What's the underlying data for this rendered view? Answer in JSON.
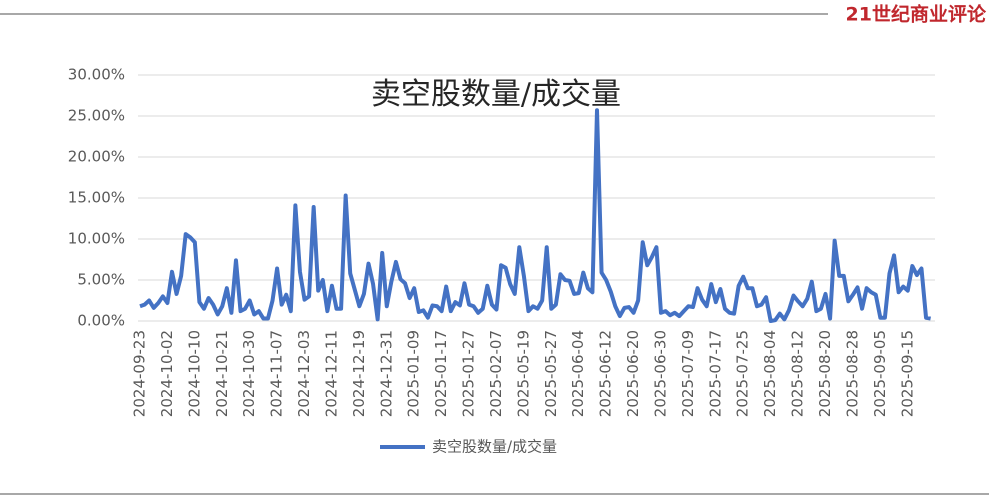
{
  "watermark": "21世纪商业评论",
  "chart_data": {
    "type": "line",
    "title": "卖空股数量/成交量",
    "categories": [
      "2024-09-23",
      null,
      null,
      null,
      null,
      null,
      "2024-10-02",
      null,
      null,
      null,
      null,
      null,
      "2024-10-10",
      null,
      null,
      null,
      null,
      null,
      "2024-10-21",
      null,
      null,
      null,
      null,
      null,
      "2024-10-30",
      null,
      null,
      null,
      null,
      null,
      "2024-11-07",
      null,
      null,
      null,
      null,
      null,
      "2024-12-03",
      null,
      null,
      null,
      null,
      null,
      "2024-12-11",
      null,
      null,
      null,
      null,
      null,
      "2024-12-19",
      null,
      null,
      null,
      null,
      null,
      "2024-12-31",
      null,
      null,
      null,
      null,
      null,
      "2025-01-09",
      null,
      null,
      null,
      null,
      null,
      "2025-01-17",
      null,
      null,
      null,
      null,
      null,
      "2025-01-27",
      null,
      null,
      null,
      null,
      null,
      "2025-02-07",
      null,
      null,
      null,
      null,
      null,
      "2025-05-19",
      null,
      null,
      null,
      null,
      null,
      "2025-05-27",
      null,
      null,
      null,
      null,
      null,
      "2025-06-04",
      null,
      null,
      null,
      null,
      null,
      "2025-06-12",
      null,
      null,
      null,
      null,
      null,
      "2025-06-20",
      null,
      null,
      null,
      null,
      null,
      "2025-06-30",
      null,
      null,
      null,
      null,
      null,
      "2025-07-09",
      null,
      null,
      null,
      null,
      null,
      "2025-07-17",
      null,
      null,
      null,
      null,
      null,
      "2025-07-25",
      null,
      null,
      null,
      null,
      null,
      "2025-08-04",
      null,
      null,
      null,
      null,
      null,
      "2025-08-12",
      null,
      null,
      null,
      null,
      null,
      "2025-08-20",
      null,
      null,
      null,
      null,
      null,
      "2025-08-28",
      null,
      null,
      null,
      null,
      null,
      "2025-09-05",
      null,
      null,
      null,
      null,
      null,
      "2025-09-15",
      null,
      null,
      null,
      null,
      null
    ],
    "series": [
      {
        "name": "卖空股数量/成交量",
        "color": "#4472c4",
        "values": [
          1.8,
          2.0,
          2.5,
          1.6,
          2.2,
          3.0,
          2.2,
          6.0,
          3.3,
          5.5,
          10.6,
          10.2,
          9.6,
          2.3,
          1.5,
          2.8,
          2.0,
          0.8,
          1.8,
          4.0,
          1.0,
          7.4,
          1.2,
          1.5,
          2.5,
          0.8,
          1.2,
          0.3,
          0.3,
          2.5,
          6.4,
          2.0,
          3.2,
          1.2,
          14.1,
          6.0,
          2.6,
          3.0,
          13.9,
          3.7,
          5.0,
          1.2,
          4.3,
          1.5,
          1.5,
          15.3,
          5.8,
          3.8,
          1.8,
          3.3,
          7.0,
          4.5,
          0.2,
          8.3,
          1.8,
          4.8,
          7.2,
          5.1,
          4.6,
          2.8,
          4.0,
          1.1,
          1.3,
          0.4,
          1.9,
          1.8,
          1.2,
          4.2,
          1.2,
          2.3,
          1.9,
          4.6,
          2.0,
          1.8,
          1.0,
          1.5,
          4.3,
          2.0,
          1.4,
          6.8,
          6.5,
          4.5,
          3.3,
          9.0,
          5.5,
          1.2,
          1.8,
          1.5,
          2.5,
          9.0,
          1.5,
          2.0,
          5.7,
          5.0,
          4.9,
          3.3,
          3.4,
          5.9,
          4.0,
          3.5,
          25.7,
          5.9,
          5.0,
          3.6,
          1.8,
          0.6,
          1.6,
          1.7,
          1.0,
          2.5,
          9.6,
          6.8,
          7.8,
          9.0,
          1.0,
          1.2,
          0.7,
          1.0,
          0.6,
          1.2,
          1.8,
          1.7,
          4.0,
          2.6,
          1.8,
          4.5,
          2.3,
          3.9,
          1.5,
          1.0,
          0.9,
          4.3,
          5.4,
          4.0,
          4.0,
          1.8,
          2.0,
          2.9,
          0,
          0.1,
          0.9,
          0.2,
          1.3,
          3.1,
          2.4,
          1.8,
          2.7,
          4.8,
          1.2,
          1.5,
          3.3,
          0.3,
          9.8,
          5.5,
          5.5,
          2.4,
          3.2,
          4.1,
          1.5,
          4.0,
          3.5,
          3.2,
          0.4,
          0.4,
          5.8,
          8.0,
          3.5,
          4.2,
          3.7,
          6.7,
          5.6,
          6.4,
          0.4,
          0.3
        ]
      }
    ],
    "ylim": [
      0,
      30
    ],
    "yticks": [
      {
        "value": 0,
        "label": "0.00%"
      },
      {
        "value": 5,
        "label": "5.00%"
      },
      {
        "value": 10,
        "label": "10.00%"
      },
      {
        "value": 15,
        "label": "15.00%"
      },
      {
        "value": 20,
        "label": "20.00%"
      },
      {
        "value": 25,
        "label": "25.00%"
      },
      {
        "value": 30,
        "label": "30.00%"
      }
    ],
    "grid": true
  }
}
